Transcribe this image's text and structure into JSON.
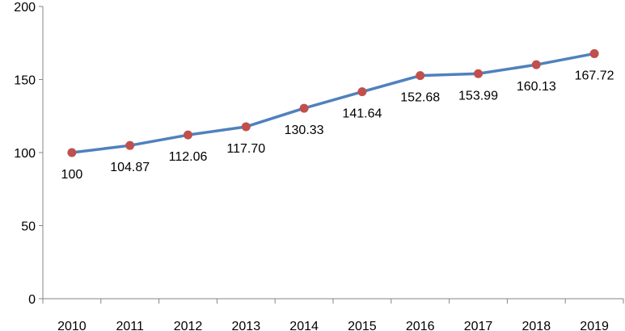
{
  "chart_data": {
    "type": "line",
    "categories": [
      "2010",
      "2011",
      "2012",
      "2013",
      "2014",
      "2015",
      "2016",
      "2017",
      "2018",
      "2019"
    ],
    "series": [
      {
        "values": [
          100,
          104.87,
          112.06,
          117.7,
          130.33,
          141.64,
          152.68,
          153.99,
          160.13,
          167.72
        ],
        "labels": [
          "100",
          "104.87",
          "112.06",
          "117.70",
          "130.33",
          "141.64",
          "152.68",
          "153.99",
          "160.13",
          "167.72"
        ]
      }
    ],
    "yticks": [
      "0",
      "50",
      "100",
      "150",
      "200"
    ],
    "ylim": [
      0,
      200
    ],
    "grid": false,
    "legend": "none",
    "line_color": "#4F81BD",
    "marker_color": "#C0504D"
  }
}
